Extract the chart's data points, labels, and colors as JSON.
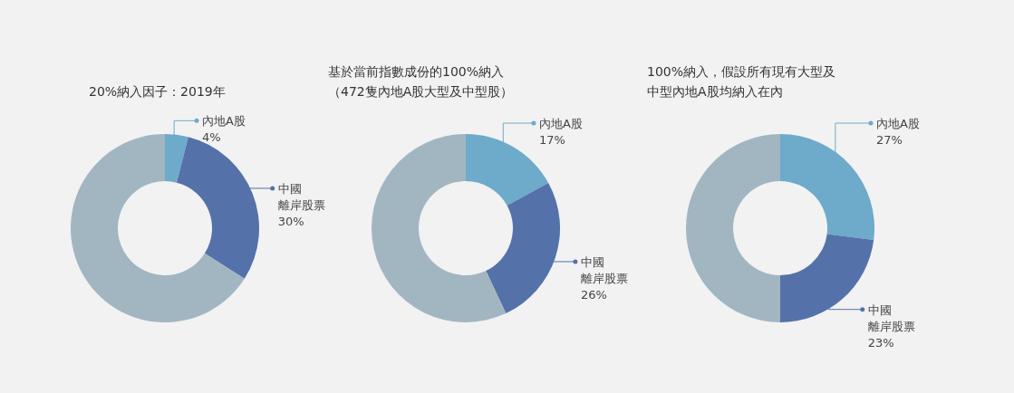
{
  "chart_data": [
    {
      "type": "donut",
      "title": "20%納入因子：2019年",
      "categories": [
        "內地A股",
        "中國離岸股票",
        null
      ],
      "values": [
        4,
        30,
        66
      ],
      "value_labels": [
        "4%",
        "30%",
        null
      ],
      "colors": [
        "#6eaac9",
        "#5472a9",
        "#a2b6c2"
      ]
    },
    {
      "type": "donut",
      "title": "基於當前指數成份的100%納入（472隻內地A股大型及中型股）",
      "categories": [
        "內地A股",
        "中國離岸股票",
        null
      ],
      "values": [
        17,
        26,
        57
      ],
      "value_labels": [
        "17%",
        "26%",
        null
      ],
      "colors": [
        "#6eaac9",
        "#5472a9",
        "#a2b6c2"
      ]
    },
    {
      "type": "donut",
      "title": "100%納入，假設所有現有大型及中型內地A股均納入在內",
      "categories": [
        "內地A股",
        "中國離岸股票",
        null
      ],
      "values": [
        27,
        23,
        50
      ],
      "value_labels": [
        "27%",
        "23%",
        null
      ],
      "colors": [
        "#6eaac9",
        "#5472a9",
        "#a2b6c2"
      ]
    }
  ]
}
